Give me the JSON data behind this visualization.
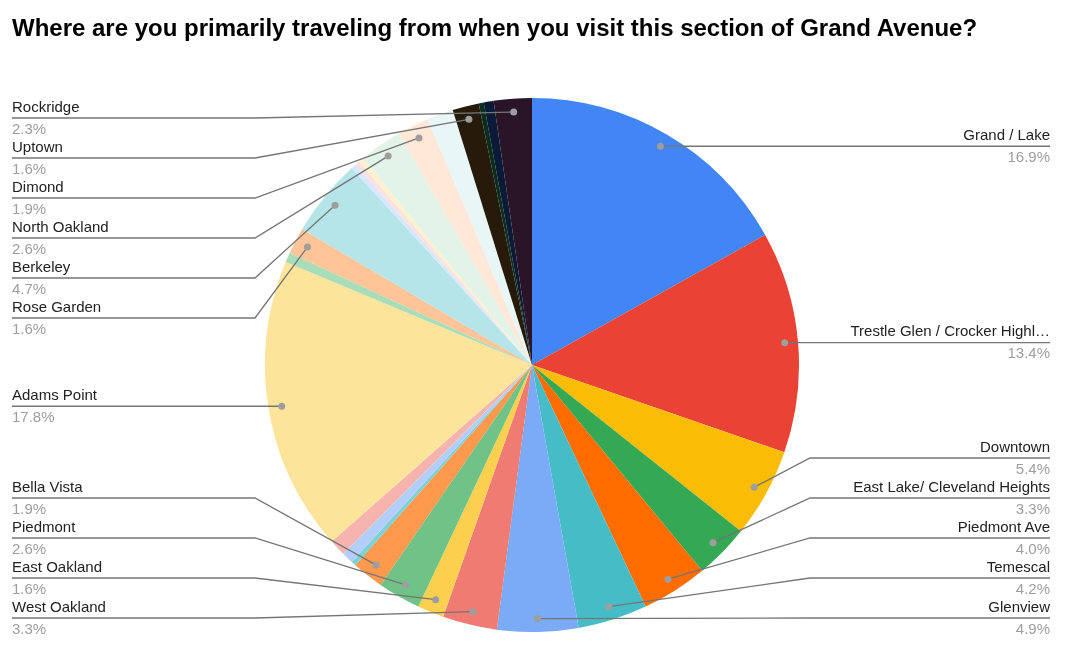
{
  "chart_data": {
    "type": "pie",
    "title": "Where are you primarily traveling from when you visit this section of Grand Avenue?",
    "categories": [
      "Grand / Lake",
      "Trestle Glen / Crocker Highl…",
      "Downtown",
      "East Lake/ Cleveland Heights",
      "Piedmont Ave",
      "Temescal",
      "Glenview",
      "West Oakland",
      "East Oakland",
      "Piedmont",
      "Bella Vista",
      null,
      null,
      null,
      "Adams Point",
      null,
      "Rose Garden",
      "Berkeley",
      null,
      null,
      null,
      "North Oakland",
      "Dimond",
      null,
      "Uptown",
      null,
      null,
      "Rockridge"
    ],
    "values": [
      16.9,
      13.4,
      5.4,
      3.3,
      4.0,
      4.2,
      4.9,
      3.3,
      1.6,
      2.6,
      1.9,
      0.3,
      0.7,
      1.0,
      17.8,
      0.6,
      1.6,
      4.7,
      0.3,
      0.3,
      0.3,
      2.6,
      1.9,
      1.6,
      1.6,
      0.3,
      0.6,
      2.3
    ],
    "colors": [
      "#4285f4",
      "#ea4335",
      "#fbbc04",
      "#34a853",
      "#ff6d01",
      "#46bdc6",
      "#7baaf7",
      "#f07b72",
      "#fcd04f",
      "#71c287",
      "#ff994d",
      "#7ed1d7",
      "#b3cefb",
      "#f7b4ae",
      "#fde49b",
      "#aadcb7",
      "#ffc599",
      "#b5e5e8",
      "#d9e7fd",
      "#fbe1df",
      "#fef1cd",
      "#e2f3e7",
      "#ffe8d8",
      "#e8f6f7",
      "#261a0a",
      "#0b2d1b",
      "#0b1a37",
      "#2a1428"
    ],
    "value_labels": [
      "16.9%",
      "13.4%",
      "5.4%",
      "3.3%",
      "4.0%",
      "4.2%",
      "4.9%",
      "3.3%",
      "1.6%",
      "2.6%",
      "1.9%",
      null,
      null,
      null,
      "17.8%",
      null,
      "1.6%",
      "4.7%",
      null,
      null,
      null,
      "2.6%",
      "1.9%",
      null,
      "1.6%",
      null,
      null,
      "2.3%"
    ],
    "legend": false
  }
}
